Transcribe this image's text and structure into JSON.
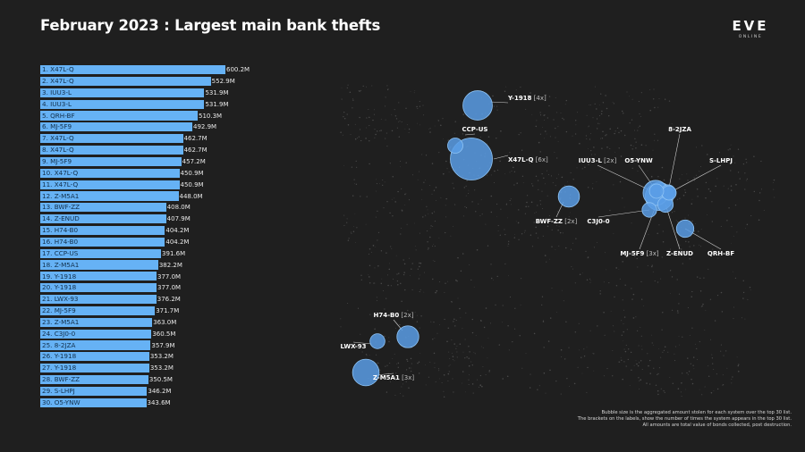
{
  "title": "February 2023 : Largest main bank thefts",
  "logo": {
    "text": "EVE",
    "subtext": "ONLINE"
  },
  "colors": {
    "background": "#1f1f1f",
    "bar": "#66b2f5",
    "bubble": "#5a9de6",
    "map_dots": "#4a4a4a"
  },
  "chart_data": [
    {
      "type": "bar",
      "orientation": "horizontal",
      "title": "February 2023 : Largest main bank thefts",
      "xlabel": "",
      "ylabel": "",
      "xlim": [
        0,
        600.2
      ],
      "categories": [
        "1. X47L-Q",
        "2. X47L-Q",
        "3. IUU3-L",
        "4. IUU3-L",
        "5. QRH-BF",
        "6. MJ-5F9",
        "7. X47L-Q",
        "8. X47L-Q",
        "9. MJ-5F9",
        "10. X47L-Q",
        "11. X47L-Q",
        "12. Z-M5A1",
        "13. BWF-ZZ",
        "14. Z-ENUD",
        "15. H74-B0",
        "16. H74-B0",
        "17. CCP-US",
        "18. Z-M5A1",
        "19. Y-1918",
        "20. Y-1918",
        "21. LWX-93",
        "22. MJ-5F9",
        "23. Z-M5A1",
        "24. C3J0-0",
        "25. 8-2JZA",
        "26. Y-1918",
        "27. Y-1918",
        "28. BWF-ZZ",
        "29. S-LHPJ",
        "30. O5-YNW"
      ],
      "values": [
        600.2,
        552.9,
        531.9,
        531.9,
        510.3,
        492.9,
        462.7,
        462.7,
        457.2,
        450.9,
        450.9,
        448.0,
        408.0,
        407.9,
        404.2,
        404.2,
        391.6,
        382.2,
        377.0,
        377.0,
        376.2,
        371.7,
        363.0,
        360.5,
        357.9,
        353.2,
        353.2,
        350.5,
        346.2,
        343.6
      ],
      "value_labels": [
        "600.2M",
        "552.9M",
        "531.9M",
        "531.9M",
        "510.3M",
        "492.9M",
        "462.7M",
        "462.7M",
        "457.2M",
        "450.9M",
        "450.9M",
        "448.0M",
        "408.0M",
        "407.9M",
        "404.2M",
        "404.2M",
        "391.6M",
        "382.2M",
        "377.0M",
        "377.0M",
        "376.2M",
        "371.7M",
        "363.0M",
        "360.5M",
        "357.9M",
        "353.2M",
        "353.2M",
        "350.5M",
        "346.2M",
        "343.6M"
      ],
      "unit": "M"
    },
    {
      "type": "scatter",
      "subtype": "bubble-map",
      "title": "",
      "bubbles": [
        {
          "system": "Y-1918",
          "count": "[4x]",
          "amount": 1460.4
        },
        {
          "system": "CCP-US",
          "count": "",
          "amount": 391.6
        },
        {
          "system": "X47L-Q",
          "count": "[6x]",
          "amount": 2980.3
        },
        {
          "system": "IUU3-L",
          "count": "[2x]",
          "amount": 1063.8
        },
        {
          "system": "O5-YNW",
          "count": "",
          "amount": 343.6
        },
        {
          "system": "8-2JZA",
          "count": "",
          "amount": 357.9
        },
        {
          "system": "S-LHPJ",
          "count": "",
          "amount": 346.2
        },
        {
          "system": "BWF-ZZ",
          "count": "[2x]",
          "amount": 758.5
        },
        {
          "system": "C3J0-0",
          "count": "",
          "amount": 360.5
        },
        {
          "system": "MJ-5F9",
          "count": "[3x]",
          "amount": 1321.8
        },
        {
          "system": "Z-ENUD",
          "count": "",
          "amount": 407.9
        },
        {
          "system": "QRH-BF",
          "count": "",
          "amount": 510.3
        },
        {
          "system": "H74-B0",
          "count": "[2x]",
          "amount": 808.4
        },
        {
          "system": "LWX-93",
          "count": "",
          "amount": 376.2
        },
        {
          "system": "Z-M5A1",
          "count": "[3x]",
          "amount": 1193.2
        }
      ]
    }
  ],
  "footnote": [
    "Bubble size is the aggregated amount stolen for each system over the top 30 list.",
    "The brackets on the labels, show the number of times the system appears in the top 30 list.",
    "All amounts are total value of bonds collected, post destruction."
  ]
}
